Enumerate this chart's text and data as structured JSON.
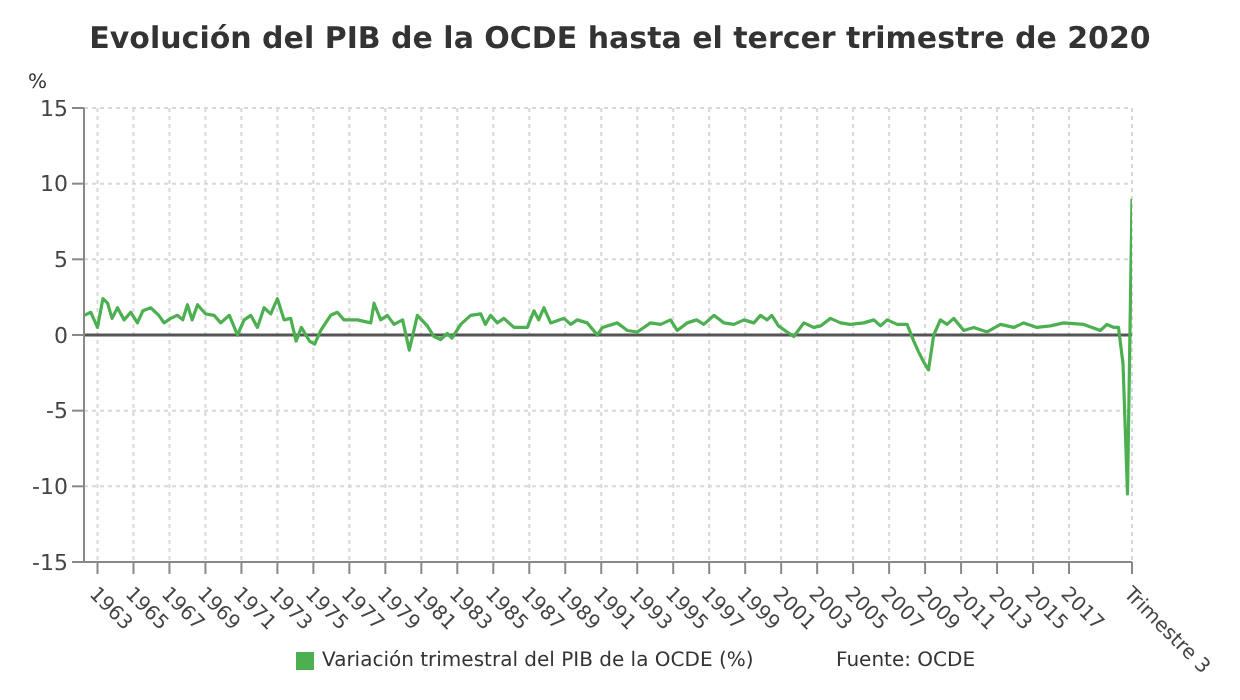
{
  "chart_data": {
    "type": "line",
    "title": "Evolución del PIB de la OCDE hasta el tercer trimestre de 2020",
    "ylabel": "%",
    "annotations": [
      "Fuente: OCDE"
    ],
    "x": [
      1962.26,
      1962.63,
      1963.0,
      1963.3,
      1963.56,
      1963.81,
      1964.11,
      1964.48,
      1964.85,
      1965.22,
      1965.52,
      1965.96,
      1966.41,
      1966.7,
      1967.07,
      1967.44,
      1967.74,
      1968.0,
      1968.26,
      1968.56,
      1969.0,
      1969.48,
      1969.85,
      1970.33,
      1970.78,
      1971.15,
      1971.52,
      1971.89,
      1972.26,
      1972.63,
      1973.0,
      1973.37,
      1973.74,
      1974.04,
      1974.33,
      1974.78,
      1975.07,
      1975.41,
      1975.96,
      1976.33,
      1976.7,
      1977.44,
      1978.19,
      1978.37,
      1978.74,
      1979.11,
      1979.48,
      1979.96,
      1980.33,
      1980.78,
      1981.33,
      1981.7,
      1982.07,
      1982.44,
      1982.7,
      1983.19,
      1983.74,
      1984.3,
      1984.56,
      1984.85,
      1985.22,
      1985.59,
      1986.15,
      1986.89,
      1987.26,
      1987.52,
      1987.81,
      1988.19,
      1988.93,
      1989.3,
      1989.67,
      1990.22,
      1990.78,
      1991.07,
      1991.89,
      1992.45,
      1993.0,
      1993.74,
      1994.3,
      1994.85,
      1995.22,
      1995.78,
      1996.3,
      1996.7,
      1997.26,
      1997.82,
      1998.37,
      1998.93,
      1999.48,
      1999.85,
      2000.22,
      2000.48,
      2000.85,
      2001.33,
      2001.7,
      2002.26,
      2002.82,
      2003.19,
      2003.74,
      2004.3,
      2004.85,
      2005.59,
      2006.15,
      2006.52,
      2006.89,
      2007.45,
      2008.0,
      2008.37,
      2008.63,
      2008.93,
      2009.19,
      2009.48,
      2009.85,
      2010.22,
      2010.59,
      2011.15,
      2011.7,
      2012.45,
      2013.19,
      2013.93,
      2014.48,
      2015.22,
      2015.96,
      2016.7,
      2017.82,
      2018.74,
      2019.11,
      2019.5,
      2019.75,
      2020.0,
      2020.25,
      2020.5
    ],
    "series": [
      {
        "name": "Variación trimestral del PIB de la OCDE (%)",
        "color": "#4caf50",
        "values": [
          1.3,
          1.5,
          0.5,
          2.4,
          2.1,
          1.1,
          1.8,
          1.0,
          1.5,
          0.8,
          1.6,
          1.8,
          1.3,
          0.8,
          1.1,
          1.3,
          1.0,
          2.0,
          1.0,
          2.0,
          1.4,
          1.3,
          0.8,
          1.3,
          0.0,
          1.0,
          1.3,
          0.5,
          1.8,
          1.4,
          2.4,
          1.0,
          1.1,
          -0.4,
          0.5,
          -0.4,
          -0.6,
          0.3,
          1.3,
          1.5,
          1.0,
          1.0,
          0.8,
          2.1,
          1.0,
          1.3,
          0.7,
          1.0,
          -1.0,
          1.3,
          0.6,
          -0.1,
          -0.3,
          0.1,
          -0.2,
          0.7,
          1.3,
          1.4,
          0.7,
          1.3,
          0.8,
          1.1,
          0.5,
          0.5,
          1.6,
          1.0,
          1.8,
          0.8,
          1.1,
          0.7,
          1.0,
          0.8,
          0.0,
          0.5,
          0.8,
          0.3,
          0.2,
          0.8,
          0.7,
          1.0,
          0.3,
          0.8,
          1.0,
          0.7,
          1.3,
          0.8,
          0.7,
          1.0,
          0.8,
          1.3,
          1.0,
          1.3,
          0.6,
          0.2,
          -0.1,
          0.8,
          0.5,
          0.6,
          1.1,
          0.8,
          0.7,
          0.8,
          1.0,
          0.6,
          1.0,
          0.7,
          0.7,
          -0.4,
          -1.1,
          -1.8,
          -2.3,
          0.0,
          1.0,
          0.7,
          1.1,
          0.3,
          0.5,
          0.2,
          0.7,
          0.5,
          0.8,
          0.5,
          0.6,
          0.8,
          0.7,
          0.3,
          0.7,
          0.5,
          0.5,
          -1.9,
          -10.5,
          9.0
        ]
      }
    ],
    "xlim": [
      1962.25,
      2020.5
    ],
    "xticks": [
      1963,
      1965,
      1967,
      1969,
      1971,
      1973,
      1975,
      1977,
      1979,
      1981,
      1983,
      1985,
      1987,
      1989,
      1991,
      1993,
      1995,
      1997,
      1999,
      2001,
      2003,
      2005,
      2007,
      2009,
      2011,
      2013,
      2015,
      2017,
      {
        "value": 2020.5,
        "label": "Trimestre 3"
      }
    ],
    "ylim": [
      -15,
      15
    ],
    "yticks": [
      -15,
      -10,
      -5,
      0,
      5,
      10,
      15
    ],
    "ref_lines": [
      {
        "axis": "y",
        "value": 0,
        "color": "#555555"
      }
    ],
    "grid": true,
    "legend": "bottom",
    "marker": "none",
    "line_style": "solid"
  }
}
